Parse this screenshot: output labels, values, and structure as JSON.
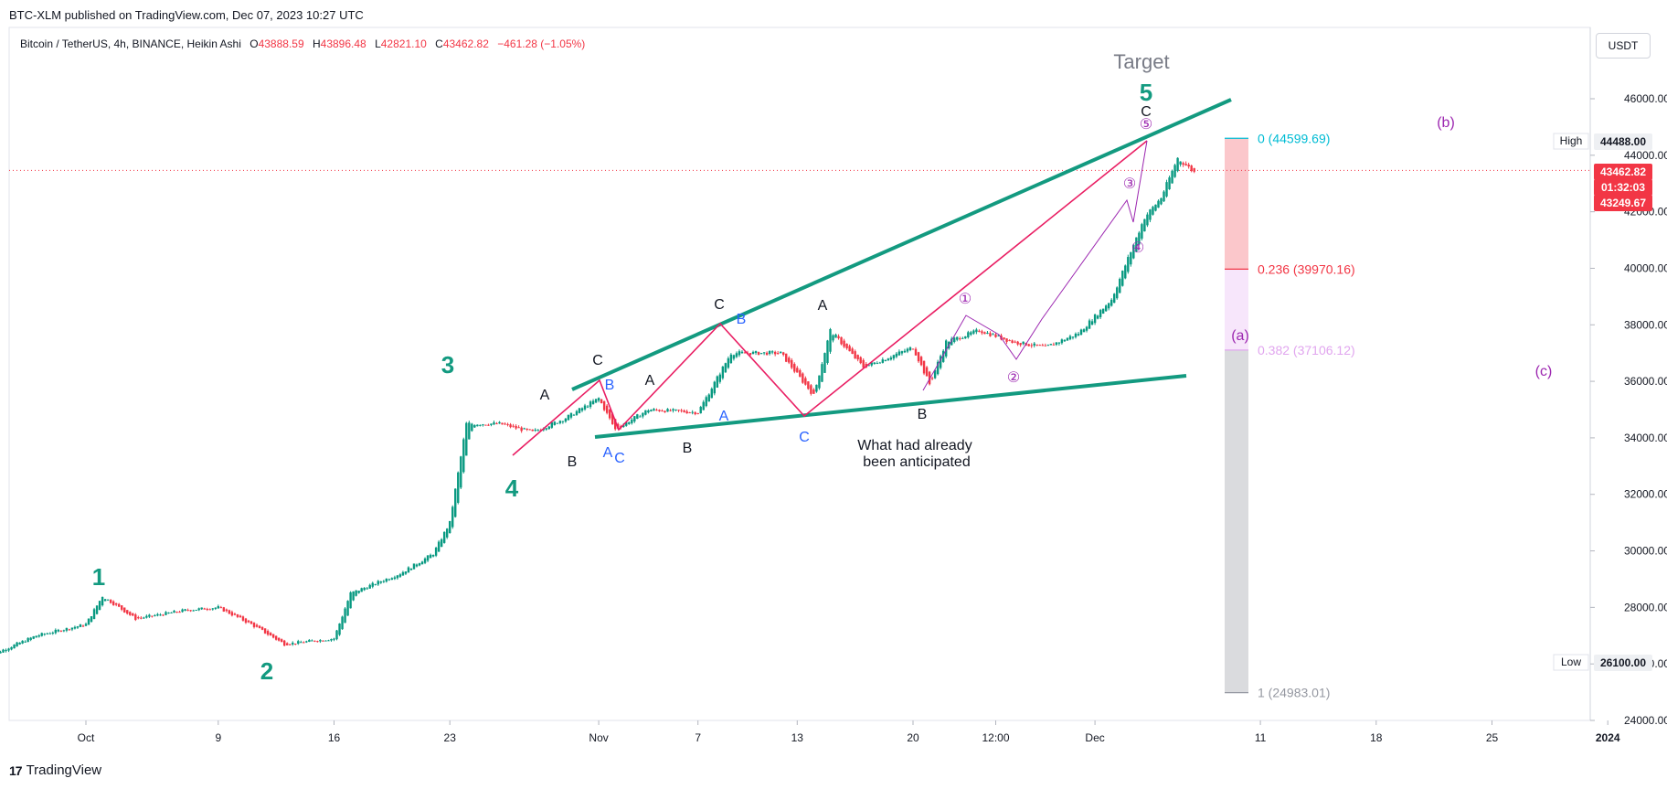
{
  "published": "BTC-XLM published on TradingView.com, Dec 07, 2023 10:27 UTC",
  "symbol": {
    "name": "Bitcoin / TetherUS, 4h, BINANCE, Heikin Ashi",
    "open_label": "O",
    "open": "43888.59",
    "high_label": "H",
    "high": "43896.48",
    "low_label": "L",
    "low": "42821.10",
    "close_label": "C",
    "close": "43462.82",
    "change": "−461.28 (−1.05%)"
  },
  "currency": "USDT",
  "footer": "TradingView",
  "colors": {
    "teal": "#139a80",
    "pink": "#e91e63",
    "purple": "#9c27b0",
    "blue": "#2962ff",
    "up": "#089981",
    "down": "#f23645"
  },
  "chart_data": {
    "type": "candlestick",
    "style": "Heikin Ashi",
    "interval": "4h",
    "ylim": [
      24000,
      46800
    ],
    "y_ticks": [
      "46000.00",
      "44000.00",
      "42000.00",
      "40000.00",
      "38000.00",
      "36000.00",
      "34000.00",
      "32000.00",
      "30000.00",
      "28000.00",
      "26000.00",
      "24000.00"
    ],
    "x_ticks": [
      "Oct",
      "9",
      "16",
      "23",
      "Nov",
      "7",
      "13",
      "20",
      "12:00",
      "Dec",
      "11",
      "18",
      "25",
      "2024"
    ],
    "close_path_approx": [
      [
        "Sep 25",
        26250
      ],
      [
        "Sep 28",
        27000
      ],
      [
        "Oct 1",
        27400
      ],
      [
        "Oct 2",
        28400
      ],
      [
        "Oct 4",
        27600
      ],
      [
        "Oct 7",
        27900
      ],
      [
        "Oct 9",
        28000
      ],
      [
        "Oct 11",
        27400
      ],
      [
        "Oct 13",
        26700
      ],
      [
        "Oct 16",
        26900
      ],
      [
        "Oct 17",
        28500
      ],
      [
        "Oct 20",
        29200
      ],
      [
        "Oct 22",
        29900
      ],
      [
        "Oct 23",
        31000
      ],
      [
        "Oct 24",
        34500
      ],
      [
        "Oct 26",
        34500
      ],
      [
        "Oct 28",
        34200
      ],
      [
        "Oct 30",
        34700
      ],
      [
        "Nov 1",
        35400
      ],
      [
        "Nov 2",
        34300
      ],
      [
        "Nov 4",
        35000
      ],
      [
        "Nov 7",
        34900
      ],
      [
        "Nov 9",
        37000
      ],
      [
        "Nov 12",
        37000
      ],
      [
        "Nov 14",
        35500
      ],
      [
        "Nov 15",
        37800
      ],
      [
        "Nov 17",
        36500
      ],
      [
        "Nov 20",
        37200
      ],
      [
        "Nov 21",
        35900
      ],
      [
        "Nov 22",
        37400
      ],
      [
        "Nov 24",
        37800
      ],
      [
        "Nov 26",
        37400
      ],
      [
        "Nov 28",
        37200
      ],
      [
        "Nov 30",
        37700
      ],
      [
        "Dec 2",
        38900
      ],
      [
        "Dec 4",
        41800
      ],
      [
        "Dec 5",
        42500
      ],
      [
        "Dec 6",
        43900
      ],
      [
        "Dec 7",
        43400
      ]
    ],
    "price_labels": {
      "high_label": "High",
      "high": "44488.00",
      "low_label": "Low",
      "low": "26100.00",
      "last": "43462.82",
      "countdown": "01:32:03",
      "prev": "43249.67"
    },
    "fib_levels": [
      {
        "label": "0 (44599.69)",
        "price": 44599.69,
        "color": "#00bcd4"
      },
      {
        "label": "0.236 (39970.16)",
        "price": 39970.16,
        "color": "#f23645"
      },
      {
        "label": "0.382 (37106.12)",
        "price": 37106.12,
        "color": "#e1a6ef"
      },
      {
        "label": "1 (24983.01)",
        "price": 24983.01,
        "color": "#9598a1"
      }
    ],
    "annotations": {
      "target": "Target",
      "anticipated": [
        "What had already",
        "been anticipated"
      ],
      "waves_teal": [
        "1",
        "2",
        "3",
        "4",
        "5"
      ],
      "abc_black": [
        "A",
        "B",
        "C",
        "A",
        "B",
        "C",
        "A",
        "B",
        "C"
      ],
      "abc_blue": [
        "A",
        "B",
        "C",
        "A",
        "B",
        "C"
      ],
      "circled": [
        "①",
        "②",
        "③",
        "④",
        "⑤"
      ],
      "future": [
        "(a)",
        "(b)",
        "(c)"
      ]
    }
  }
}
